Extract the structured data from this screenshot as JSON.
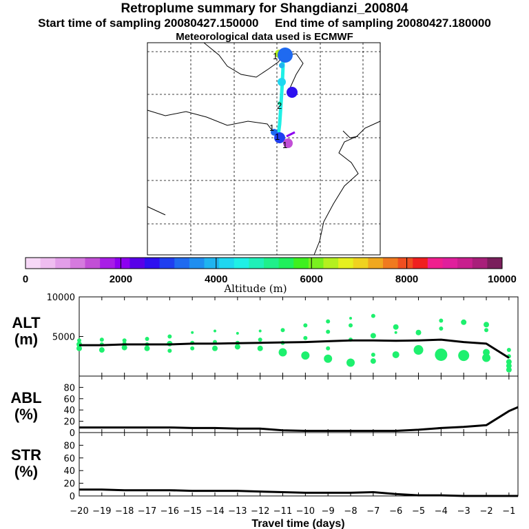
{
  "titles": {
    "main": "Retroplume summary for Shangdianzi_200804",
    "sampling": "Start time of sampling 20080427.150000     End time of sampling 20080427.180000",
    "met": "Meteorological data used is ECMWF"
  },
  "map": {
    "trajectory_labels": [
      "1",
      "2",
      "1",
      "1",
      "1"
    ]
  },
  "colorbar": {
    "title": "Altitude (m)",
    "ticks": [
      "0",
      "2000",
      "4000",
      "6000",
      "8000",
      "10000"
    ],
    "colors": [
      "#f7d8f7",
      "#efbdf0",
      "#e29ee8",
      "#d57ade",
      "#c24fd6",
      "#a81ee6",
      "#8d00f0",
      "#5800e8",
      "#2d10f0",
      "#1f3ef0",
      "#1f6af0",
      "#1f8ef0",
      "#1fb4f0",
      "#1fd7f0",
      "#1ff0e6",
      "#1ff0b8",
      "#1ff08a",
      "#1ff05c",
      "#3ef01f",
      "#7af01f",
      "#b4f01f",
      "#e6f01f",
      "#f0d21f",
      "#f0a81f",
      "#f07a1f",
      "#f04e1f",
      "#f01f1f",
      "#f01f8e",
      "#e01f9c",
      "#c81f8e",
      "#a81f7a",
      "#7a1f5c"
    ]
  },
  "colors": {
    "dot": "#1ef06e",
    "line": "#000000"
  },
  "chart_data": [
    {
      "type": "scatter",
      "title": "ALT",
      "ylabel": "ALT (m)",
      "panel_label": "ALT",
      "unit_label": "(m)",
      "ylim": [
        0,
        10000
      ],
      "yticks": [
        5000,
        10000
      ],
      "xlim": [
        -20,
        -0.6
      ],
      "line": {
        "x": [
          -20,
          -19,
          -18,
          -17,
          -16,
          -15,
          -14,
          -13,
          -12,
          -11,
          -10,
          -9,
          -8,
          -7,
          -6,
          -5,
          -4,
          -3,
          -2,
          -1
        ],
        "y": [
          3900,
          3900,
          4000,
          4000,
          4000,
          4100,
          4100,
          4150,
          4200,
          4250,
          4300,
          4400,
          4500,
          4500,
          4450,
          4500,
          4600,
          4300,
          4100,
          2300
        ]
      },
      "points": [
        {
          "x": -20,
          "y": 4500,
          "s": 3
        },
        {
          "x": -20,
          "y": 4000,
          "s": 4
        },
        {
          "x": -20,
          "y": 3500,
          "s": 4
        },
        {
          "x": -19,
          "y": 4600,
          "s": 3
        },
        {
          "x": -19,
          "y": 4000,
          "s": 3
        },
        {
          "x": -19,
          "y": 3300,
          "s": 4
        },
        {
          "x": -18,
          "y": 4500,
          "s": 3
        },
        {
          "x": -18,
          "y": 4100,
          "s": 3
        },
        {
          "x": -18,
          "y": 3600,
          "s": 4
        },
        {
          "x": -17,
          "y": 4700,
          "s": 3
        },
        {
          "x": -17,
          "y": 4000,
          "s": 3
        },
        {
          "x": -17,
          "y": 3500,
          "s": 4
        },
        {
          "x": -16,
          "y": 5000,
          "s": 3
        },
        {
          "x": -16,
          "y": 4100,
          "s": 4
        },
        {
          "x": -16,
          "y": 3200,
          "s": 3
        },
        {
          "x": -15,
          "y": 5500,
          "s": 2
        },
        {
          "x": -15,
          "y": 4200,
          "s": 3
        },
        {
          "x": -15,
          "y": 3500,
          "s": 3
        },
        {
          "x": -14,
          "y": 5700,
          "s": 2
        },
        {
          "x": -14,
          "y": 4300,
          "s": 3
        },
        {
          "x": -14,
          "y": 3500,
          "s": 4
        },
        {
          "x": -13,
          "y": 5400,
          "s": 2
        },
        {
          "x": -13,
          "y": 4200,
          "s": 3
        },
        {
          "x": -13,
          "y": 3700,
          "s": 4
        },
        {
          "x": -12,
          "y": 5700,
          "s": 2
        },
        {
          "x": -12,
          "y": 4600,
          "s": 3
        },
        {
          "x": -12,
          "y": 3500,
          "s": 4
        },
        {
          "x": -11,
          "y": 5800,
          "s": 3
        },
        {
          "x": -11,
          "y": 4200,
          "s": 3
        },
        {
          "x": -11,
          "y": 3000,
          "s": 6
        },
        {
          "x": -10,
          "y": 6400,
          "s": 3
        },
        {
          "x": -10,
          "y": 4800,
          "s": 3
        },
        {
          "x": -10,
          "y": 2600,
          "s": 6
        },
        {
          "x": -9,
          "y": 6900,
          "s": 3
        },
        {
          "x": -9,
          "y": 5600,
          "s": 3
        },
        {
          "x": -9,
          "y": 3500,
          "s": 3
        },
        {
          "x": -9,
          "y": 2200,
          "s": 6
        },
        {
          "x": -8,
          "y": 7300,
          "s": 2
        },
        {
          "x": -8,
          "y": 6400,
          "s": 3
        },
        {
          "x": -8,
          "y": 4600,
          "s": 3
        },
        {
          "x": -8,
          "y": 1700,
          "s": 6
        },
        {
          "x": -7,
          "y": 7600,
          "s": 3
        },
        {
          "x": -7,
          "y": 5100,
          "s": 4
        },
        {
          "x": -7,
          "y": 2700,
          "s": 3
        },
        {
          "x": -7,
          "y": 1900,
          "s": 4
        },
        {
          "x": -6,
          "y": 6200,
          "s": 4
        },
        {
          "x": -6,
          "y": 5500,
          "s": 2
        },
        {
          "x": -6,
          "y": 2700,
          "s": 5
        },
        {
          "x": -5,
          "y": 5500,
          "s": 4
        },
        {
          "x": -5,
          "y": 3300,
          "s": 7
        },
        {
          "x": -4,
          "y": 7000,
          "s": 3
        },
        {
          "x": -4,
          "y": 6000,
          "s": 3
        },
        {
          "x": -4,
          "y": 2700,
          "s": 9
        },
        {
          "x": -3,
          "y": 6800,
          "s": 4
        },
        {
          "x": -3,
          "y": 2600,
          "s": 8
        },
        {
          "x": -2,
          "y": 6500,
          "s": 4
        },
        {
          "x": -2,
          "y": 5800,
          "s": 3
        },
        {
          "x": -2,
          "y": 3000,
          "s": 5
        },
        {
          "x": -2,
          "y": 2300,
          "s": 6
        },
        {
          "x": -1,
          "y": 3300,
          "s": 3
        },
        {
          "x": -1,
          "y": 2500,
          "s": 3
        },
        {
          "x": -1,
          "y": 1800,
          "s": 4
        },
        {
          "x": -1,
          "y": 1300,
          "s": 4
        },
        {
          "x": -1,
          "y": 800,
          "s": 4
        }
      ]
    },
    {
      "type": "line",
      "title": "ABL",
      "ylabel": "ABL (%)",
      "panel_label": "ABL",
      "unit_label": "(%)",
      "ylim": [
        0,
        100
      ],
      "yticks": [
        0,
        20,
        40,
        60,
        80
      ],
      "xlim": [
        -20,
        -0.6
      ],
      "x": [
        -20,
        -19,
        -18,
        -17,
        -16,
        -15,
        -14,
        -13,
        -12,
        -11,
        -10,
        -9,
        -8,
        -7,
        -6,
        -5,
        -4,
        -3,
        -2,
        -1,
        -0.6
      ],
      "y": [
        9,
        9,
        9,
        9,
        9,
        8,
        8,
        7,
        7,
        4,
        3,
        3,
        3,
        3,
        3,
        5,
        8,
        10,
        13,
        38,
        45
      ]
    },
    {
      "type": "line",
      "title": "STR",
      "ylabel": "STR (%)",
      "panel_label": "STR",
      "unit_label": "(%)",
      "ylim": [
        0,
        100
      ],
      "yticks": [
        0,
        20,
        40,
        60,
        80
      ],
      "xlim": [
        -20,
        -0.6
      ],
      "x": [
        -20,
        -19,
        -18,
        -17,
        -16,
        -15,
        -14,
        -13,
        -12,
        -11,
        -10,
        -9,
        -8,
        -7,
        -6,
        -5,
        -4,
        -3,
        -2,
        -1,
        -0.6
      ],
      "y": [
        10,
        10,
        9,
        9,
        9,
        8,
        8,
        8,
        7,
        6,
        5,
        5,
        5,
        6,
        3,
        1,
        1,
        0,
        0,
        0,
        0
      ],
      "xlabel": "Travel time (days)",
      "xticks": [
        -20,
        -19,
        -18,
        -17,
        -16,
        -15,
        -14,
        -13,
        -12,
        -11,
        -10,
        -9,
        -8,
        -7,
        -6,
        -5,
        -4,
        -3,
        -2,
        -1
      ],
      "xtick_labels": [
        "−20",
        "−19",
        "−18",
        "−17",
        "−16",
        "−15",
        "−14",
        "−13",
        "−12",
        "−11",
        "−10",
        "−9",
        "−8",
        "−7",
        "−6",
        "−5",
        "−4",
        "−3",
        "−2",
        "−1"
      ]
    }
  ]
}
